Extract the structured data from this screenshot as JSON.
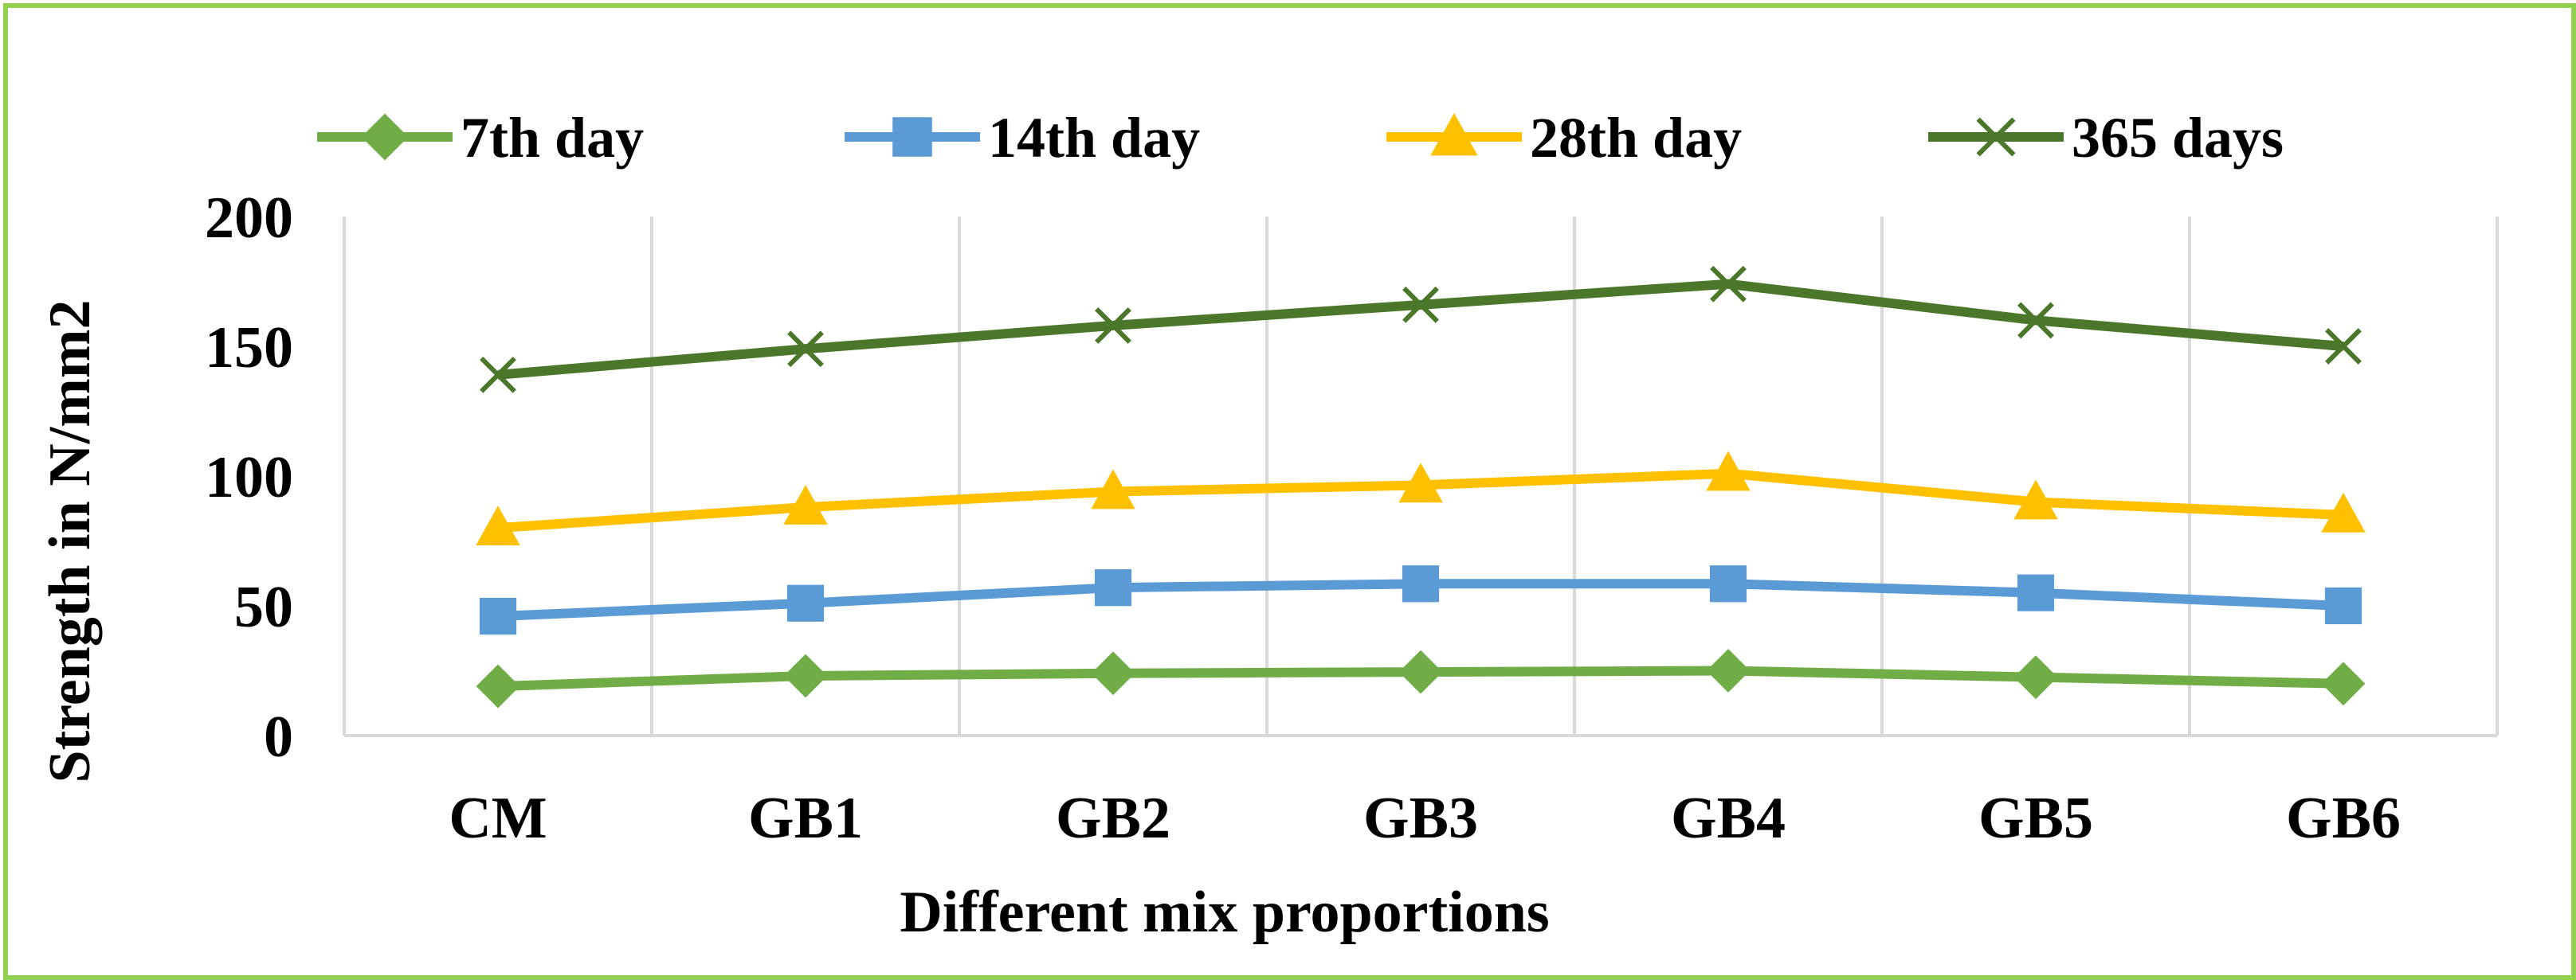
{
  "chart_data": {
    "type": "line",
    "title": "",
    "xlabel": "Different mix proportions",
    "ylabel": "Strength in N/mm2",
    "categories": [
      "CM",
      "GB1",
      "GB2",
      "GB3",
      "GB4",
      "GB5",
      "GB6"
    ],
    "ylim": [
      0,
      200
    ],
    "yticks": [
      "0",
      "50",
      "100",
      "150",
      "200"
    ],
    "grid": "vertical",
    "legend_position": "top",
    "series": [
      {
        "name": "7th day",
        "color": "#70ad47",
        "marker": "diamond",
        "values": [
          19,
          23,
          24,
          24.5,
          25,
          22.5,
          20
        ]
      },
      {
        "name": "14th day",
        "color": "#5b9bd5",
        "marker": "square",
        "values": [
          46,
          51,
          57,
          58.5,
          58.5,
          55,
          50
        ]
      },
      {
        "name": "28th day",
        "color": "#ffc000",
        "marker": "triangle",
        "values": [
          80,
          88,
          94,
          96.5,
          101,
          90,
          85
        ]
      },
      {
        "name": "365 days",
        "color": "#4a7729",
        "marker": "x",
        "values": [
          139,
          149,
          158,
          166,
          174,
          160,
          150
        ]
      }
    ]
  },
  "colors": {
    "frame_border": "#92d050",
    "grid": "#d9d9d9"
  }
}
